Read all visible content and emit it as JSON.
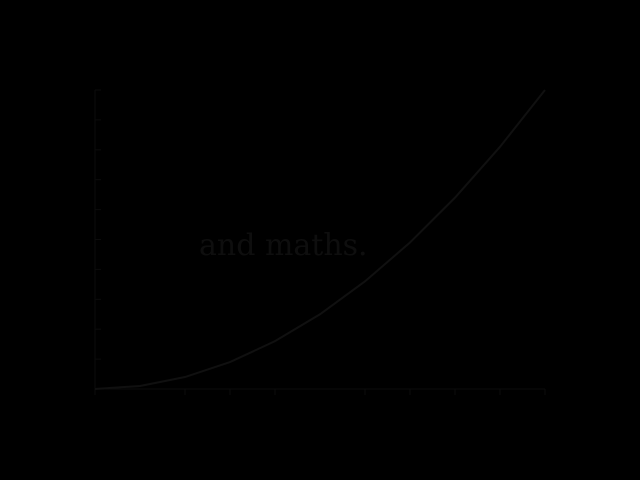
{
  "chart_data": {
    "type": "line",
    "title": "",
    "xlabel": "",
    "ylabel": "",
    "xlim": [
      0,
      1
    ],
    "ylim": [
      0,
      1
    ],
    "grid": false,
    "x_ticks": [
      0,
      0.2,
      0.3,
      0.4,
      0.6,
      0.7,
      0.8,
      0.9,
      1.0
    ],
    "y_ticks": [
      0,
      0.1,
      0.2,
      0.3,
      0.4,
      0.5,
      0.6,
      0.7,
      0.8,
      0.9,
      1.0
    ],
    "series": [
      {
        "x": [
          0,
          0.1,
          0.2,
          0.3,
          0.4,
          0.5,
          0.6,
          0.7,
          0.8,
          0.9,
          1.0
        ],
        "values": [
          0,
          0.01,
          0.04,
          0.09,
          0.16,
          0.25,
          0.36,
          0.49,
          0.64,
          0.81,
          1.0
        ]
      }
    ],
    "annotation": "and maths.",
    "colors": {
      "background": "#000000",
      "axis": "#0b0b0b",
      "curve": "#101010",
      "annotation": "#0e0e0e"
    }
  }
}
